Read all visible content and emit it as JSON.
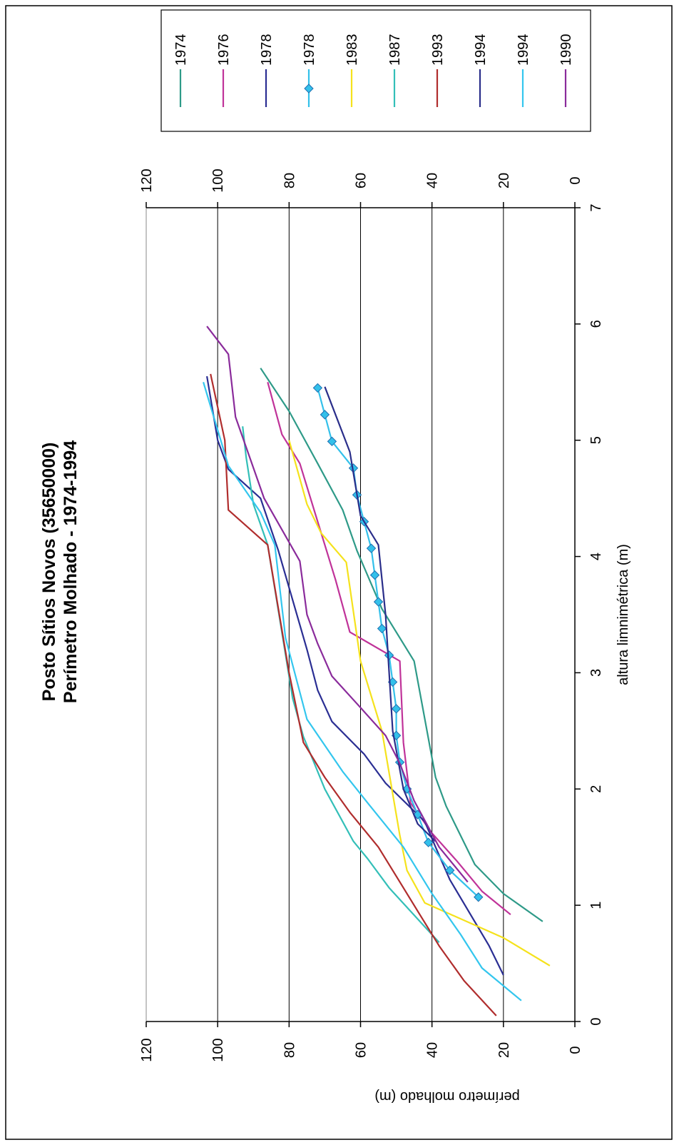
{
  "chart_data": {
    "type": "line",
    "orientation": "rotated-90-counterclockwise",
    "title": "Posto Sítios Novos (35650000)",
    "subtitle": "Perímetro Molhado - 1974-1994",
    "xlabel": "altura limnimétrica (m)",
    "ylabel": "perímetro molhado (m)",
    "xlim": [
      0,
      7
    ],
    "ylim": [
      0,
      120
    ],
    "x_ticks": [
      "0",
      "1",
      "2",
      "3",
      "4",
      "5",
      "6",
      "7"
    ],
    "y_ticks": [
      "0",
      "20",
      "40",
      "60",
      "80",
      "100",
      "120"
    ],
    "grid": "horizontal major gridlines",
    "legend_position": "right",
    "series": [
      {
        "name": "1974",
        "color": "#2e9a88",
        "marker": "none",
        "points": [
          [
            0.86,
            9
          ],
          [
            1.1,
            20
          ],
          [
            1.35,
            28
          ],
          [
            1.85,
            36
          ],
          [
            2.1,
            39
          ],
          [
            3.1,
            45
          ],
          [
            3.55,
            54
          ],
          [
            4.05,
            61
          ],
          [
            4.4,
            65
          ],
          [
            4.8,
            72
          ],
          [
            5.25,
            80
          ],
          [
            5.62,
            88
          ]
        ]
      },
      {
        "name": "1976",
        "color": "#c03399",
        "marker": "none",
        "points": [
          [
            0.92,
            18
          ],
          [
            1.12,
            26
          ],
          [
            1.38,
            33
          ],
          [
            1.62,
            40
          ],
          [
            1.88,
            46
          ],
          [
            2.4,
            48
          ],
          [
            3.1,
            49
          ],
          [
            3.35,
            63
          ],
          [
            3.8,
            67
          ],
          [
            4.2,
            71
          ],
          [
            4.8,
            77
          ],
          [
            5.05,
            82
          ],
          [
            5.5,
            86
          ]
        ]
      },
      {
        "name": "1978",
        "color": "#2a2e93",
        "marker": "none",
        "points": [
          [
            0.4,
            20
          ],
          [
            0.65,
            24
          ],
          [
            1.22,
            35
          ],
          [
            1.5,
            39
          ],
          [
            1.72,
            42
          ],
          [
            2.05,
            53
          ],
          [
            2.3,
            59
          ],
          [
            2.58,
            68
          ],
          [
            2.85,
            72
          ],
          [
            3.2,
            75
          ],
          [
            4.05,
            83
          ],
          [
            4.5,
            88
          ],
          [
            4.75,
            97
          ],
          [
            5.0,
            100
          ],
          [
            5.55,
            103
          ]
        ]
      },
      {
        "name": "1978",
        "color": "#33c0ea",
        "marker": "diamond",
        "points": [
          [
            1.07,
            27
          ],
          [
            1.3,
            35
          ],
          [
            1.54,
            41
          ],
          [
            1.78,
            44
          ],
          [
            2.0,
            47
          ],
          [
            2.23,
            49
          ],
          [
            2.46,
            50
          ],
          [
            2.69,
            50
          ],
          [
            2.92,
            51
          ],
          [
            3.15,
            52
          ],
          [
            3.38,
            54
          ],
          [
            3.61,
            55
          ],
          [
            3.84,
            56
          ],
          [
            4.07,
            57
          ],
          [
            4.3,
            59
          ],
          [
            4.53,
            61
          ],
          [
            4.76,
            62
          ],
          [
            4.99,
            68
          ],
          [
            5.22,
            70
          ],
          [
            5.45,
            72
          ]
        ]
      },
      {
        "name": "1983",
        "color": "#f5e21c",
        "marker": "none",
        "points": [
          [
            0.48,
            7
          ],
          [
            0.72,
            20
          ],
          [
            1.02,
            42
          ],
          [
            1.3,
            47
          ],
          [
            1.6,
            49
          ],
          [
            2.5,
            54
          ],
          [
            3.1,
            60
          ],
          [
            3.95,
            64
          ],
          [
            4.2,
            71
          ],
          [
            4.45,
            75
          ],
          [
            5.0,
            80
          ]
        ]
      },
      {
        "name": "1987",
        "color": "#33bfb8",
        "marker": "none",
        "points": [
          [
            0.68,
            38
          ],
          [
            1.15,
            52
          ],
          [
            1.4,
            58
          ],
          [
            1.55,
            62
          ],
          [
            2.0,
            70
          ],
          [
            2.45,
            76
          ],
          [
            2.78,
            79
          ],
          [
            4.1,
            86
          ],
          [
            4.45,
            90
          ],
          [
            4.85,
            92
          ],
          [
            5.12,
            93
          ]
        ]
      },
      {
        "name": "1993",
        "color": "#b02d2d",
        "marker": "none",
        "points": [
          [
            0.05,
            22
          ],
          [
            0.35,
            31
          ],
          [
            0.65,
            38
          ],
          [
            0.95,
            44
          ],
          [
            1.2,
            49
          ],
          [
            1.5,
            55
          ],
          [
            1.8,
            63
          ],
          [
            2.1,
            70
          ],
          [
            2.4,
            76
          ],
          [
            3.0,
            80
          ],
          [
            4.1,
            86
          ],
          [
            4.4,
            97
          ],
          [
            5.0,
            98
          ],
          [
            5.57,
            102
          ]
        ]
      },
      {
        "name": "1994",
        "color": "#2a2e8a",
        "marker": "none",
        "points": [
          [
            1.55,
            39
          ],
          [
            1.7,
            44
          ],
          [
            2.0,
            48
          ],
          [
            2.5,
            51
          ],
          [
            3.0,
            52
          ],
          [
            3.5,
            53
          ],
          [
            4.1,
            55
          ],
          [
            4.35,
            60
          ],
          [
            4.9,
            63
          ],
          [
            5.46,
            70
          ]
        ]
      },
      {
        "name": "1994",
        "color": "#33c6ee",
        "marker": "none",
        "points": [
          [
            0.18,
            15
          ],
          [
            0.46,
            26
          ],
          [
            0.75,
            32
          ],
          [
            1.1,
            40
          ],
          [
            1.5,
            48
          ],
          [
            1.88,
            58
          ],
          [
            2.15,
            65
          ],
          [
            2.6,
            75
          ],
          [
            3.3,
            81
          ],
          [
            4.1,
            84
          ],
          [
            4.38,
            88
          ],
          [
            4.78,
            97
          ],
          [
            5.5,
            104
          ]
        ]
      },
      {
        "name": "1990",
        "color": "#8a2b9b",
        "marker": "none",
        "points": [
          [
            1.2,
            30
          ],
          [
            1.5,
            38
          ],
          [
            1.9,
            45
          ],
          [
            2.22,
            49
          ],
          [
            2.46,
            53
          ],
          [
            2.7,
            60
          ],
          [
            2.97,
            68
          ],
          [
            3.25,
            72
          ],
          [
            3.5,
            75
          ],
          [
            3.96,
            77
          ],
          [
            4.5,
            87
          ],
          [
            5.2,
            95
          ],
          [
            5.74,
            97
          ],
          [
            5.98,
            103
          ]
        ]
      }
    ]
  }
}
